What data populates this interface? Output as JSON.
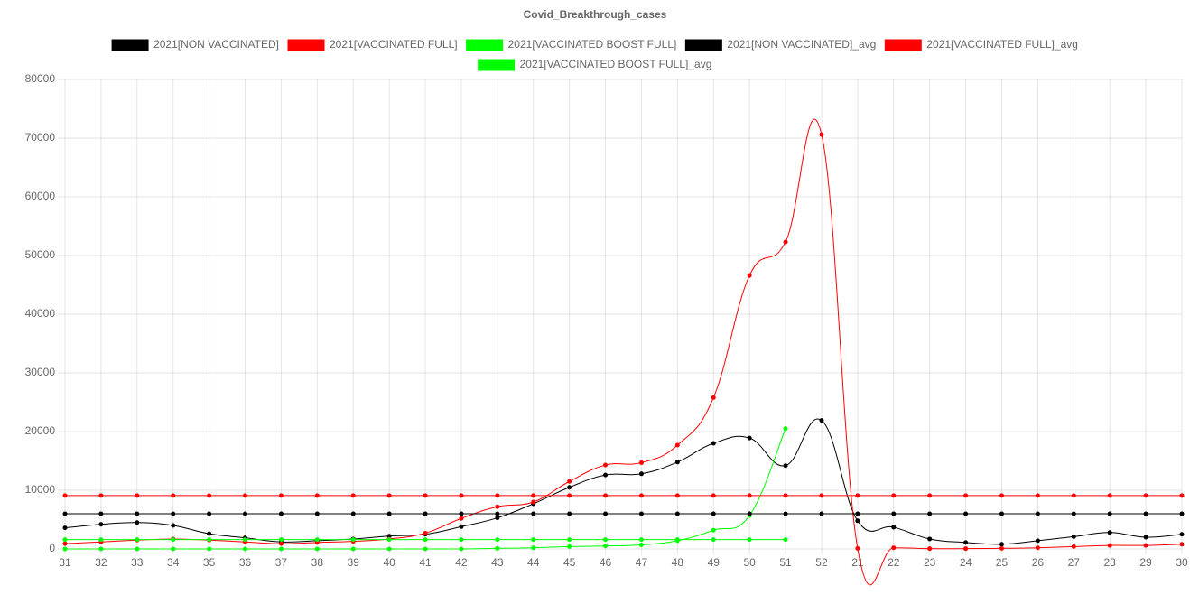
{
  "chart_data": {
    "type": "line",
    "title": "Covid_Breakthrough_cases",
    "categories": [
      "31",
      "32",
      "33",
      "34",
      "35",
      "36",
      "37",
      "38",
      "39",
      "40",
      "41",
      "42",
      "43",
      "44",
      "45",
      "46",
      "47",
      "48",
      "49",
      "50",
      "51",
      "52",
      "21",
      "22",
      "23",
      "24",
      "25",
      "26",
      "27",
      "28",
      "29",
      "30"
    ],
    "series": [
      {
        "name": "2021[NON VACCINATED]",
        "color": "#000000",
        "values": [
          3600,
          4200,
          4500,
          4000,
          2600,
          1900,
          1200,
          1400,
          1700,
          2200,
          2500,
          3800,
          5300,
          7700,
          10500,
          12600,
          12800,
          14800,
          18000,
          18900,
          14200,
          21900,
          4800,
          3700,
          1700,
          1100,
          800,
          1400,
          2100,
          2800,
          2000,
          2500
        ]
      },
      {
        "name": "2021[VACCINATED FULL]",
        "color": "#ff0000",
        "values": [
          900,
          1200,
          1500,
          1700,
          1500,
          1200,
          900,
          1100,
          1300,
          1700,
          2700,
          5200,
          7200,
          8000,
          11500,
          14300,
          14700,
          17700,
          25800,
          46600,
          52300,
          70600,
          100,
          200,
          50,
          50,
          100,
          200,
          400,
          600,
          600,
          800
        ]
      },
      {
        "name": "2021[VACCINATED BOOST FULL]",
        "color": "#00ff00",
        "values": [
          0,
          0,
          0,
          0,
          0,
          0,
          0,
          0,
          0,
          0,
          0,
          0,
          100,
          200,
          400,
          500,
          700,
          1400,
          3200,
          5700,
          20500,
          null,
          null,
          null,
          null,
          null,
          null,
          null,
          null,
          null,
          null,
          null
        ]
      },
      {
        "name": "2021[NON VACCINATED]_avg",
        "color": "#000000",
        "values": [
          6000,
          6000,
          6000,
          6000,
          6000,
          6000,
          6000,
          6000,
          6000,
          6000,
          6000,
          6000,
          6000,
          6000,
          6000,
          6000,
          6000,
          6000,
          6000,
          6000,
          6000,
          6000,
          6000,
          6000,
          6000,
          6000,
          6000,
          6000,
          6000,
          6000,
          6000,
          6000
        ]
      },
      {
        "name": "2021[VACCINATED FULL]_avg",
        "color": "#ff0000",
        "values": [
          9100,
          9100,
          9100,
          9100,
          9100,
          9100,
          9100,
          9100,
          9100,
          9100,
          9100,
          9100,
          9100,
          9100,
          9100,
          9100,
          9100,
          9100,
          9100,
          9100,
          9100,
          9100,
          9100,
          9100,
          9100,
          9100,
          9100,
          9100,
          9100,
          9100,
          9100,
          9100
        ]
      },
      {
        "name": "2021[VACCINATED BOOST FULL]_avg",
        "color": "#00ff00",
        "values": [
          1600,
          1600,
          1600,
          1600,
          1600,
          1600,
          1600,
          1600,
          1600,
          1600,
          1600,
          1600,
          1600,
          1600,
          1600,
          1600,
          1600,
          1600,
          1600,
          1600,
          1600,
          null,
          null,
          null,
          null,
          null,
          null,
          null,
          null,
          null,
          null,
          null
        ]
      }
    ],
    "ylim": [
      0,
      80000
    ],
    "yticks": [
      0,
      10000,
      20000,
      30000,
      40000,
      50000,
      60000,
      70000,
      80000
    ],
    "grid": true
  }
}
